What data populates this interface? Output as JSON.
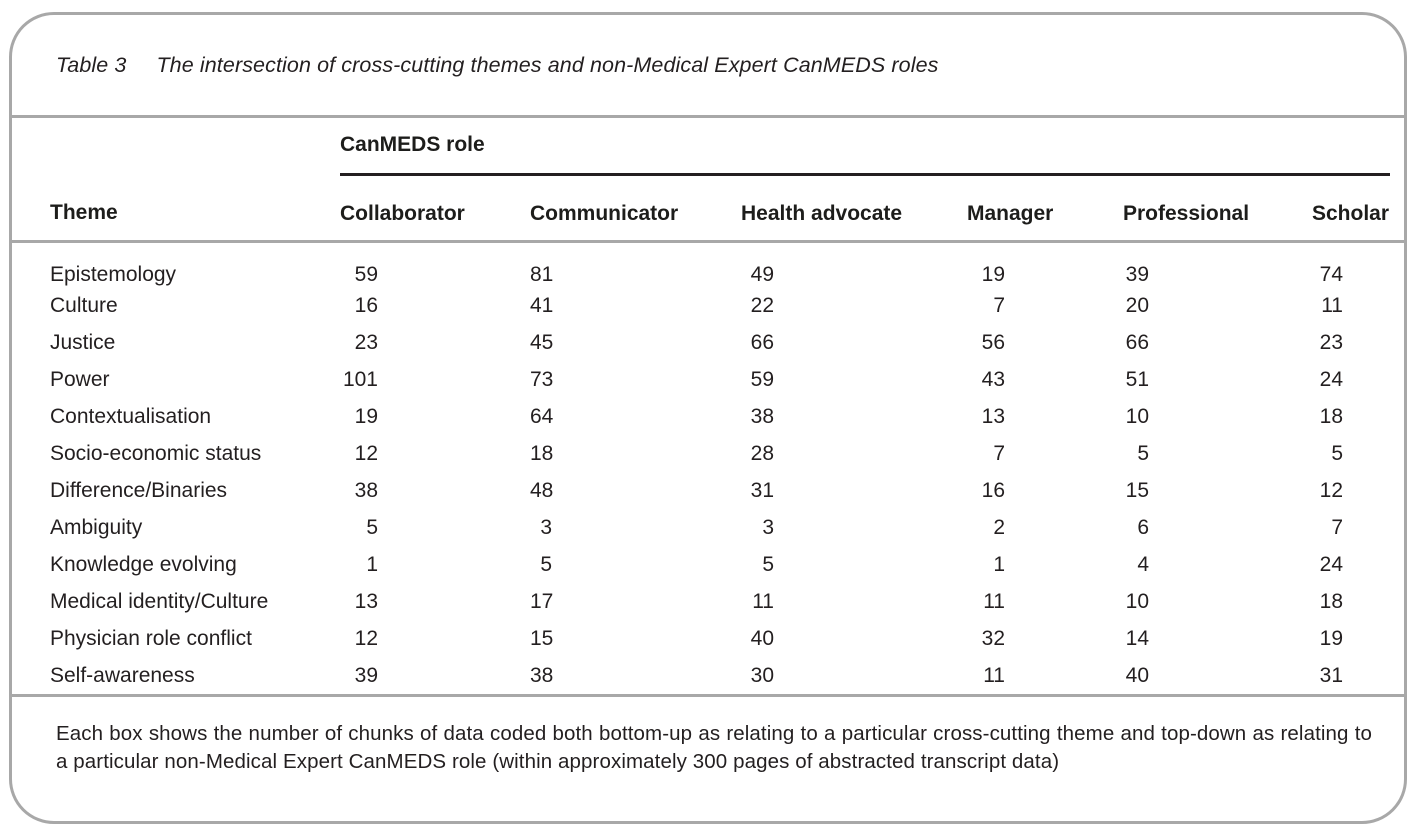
{
  "table": {
    "title_label": "Table 3",
    "title_text": "The intersection of cross-cutting themes and non-Medical Expert CanMEDS roles",
    "group_header": "CanMEDS role",
    "theme_header": "Theme",
    "role_headers": [
      "Collaborator",
      "Communicator",
      "Health advocate",
      "Manager",
      "Professional",
      "Scholar"
    ],
    "rows": [
      {
        "theme": "Epistemology",
        "values": [
          59,
          81,
          49,
          19,
          39,
          74
        ]
      },
      {
        "theme": "Culture",
        "values": [
          16,
          41,
          22,
          7,
          20,
          11
        ]
      },
      {
        "theme": "Justice",
        "values": [
          23,
          45,
          66,
          56,
          66,
          23
        ]
      },
      {
        "theme": "Power",
        "values": [
          101,
          73,
          59,
          43,
          51,
          24
        ]
      },
      {
        "theme": "Contextualisation",
        "values": [
          19,
          64,
          38,
          13,
          10,
          18
        ]
      },
      {
        "theme": "Socio-economic status",
        "values": [
          12,
          18,
          28,
          7,
          5,
          5
        ]
      },
      {
        "theme": "Difference/Binaries",
        "values": [
          38,
          48,
          31,
          16,
          15,
          12
        ]
      },
      {
        "theme": "Ambiguity",
        "values": [
          5,
          3,
          3,
          2,
          6,
          7
        ]
      },
      {
        "theme": "Knowledge evolving",
        "values": [
          1,
          5,
          5,
          1,
          4,
          24
        ]
      },
      {
        "theme": "Medical identity/Culture",
        "values": [
          13,
          17,
          11,
          11,
          10,
          18
        ]
      },
      {
        "theme": "Physician role conflict",
        "values": [
          12,
          15,
          40,
          32,
          14,
          19
        ]
      },
      {
        "theme": "Self-awareness",
        "values": [
          39,
          38,
          30,
          11,
          40,
          31
        ]
      }
    ],
    "footnote": "Each box shows the number of chunks of data coded both bottom-up as relating to a particular cross-cutting theme and top-down as relating to a particular non-Medical Expert CanMEDS role (within approximately 300 pages of abstracted transcript data)"
  },
  "colors": {
    "border_gray": "#a8a8a8",
    "rule_black": "#231f20",
    "text": "#231f20"
  }
}
